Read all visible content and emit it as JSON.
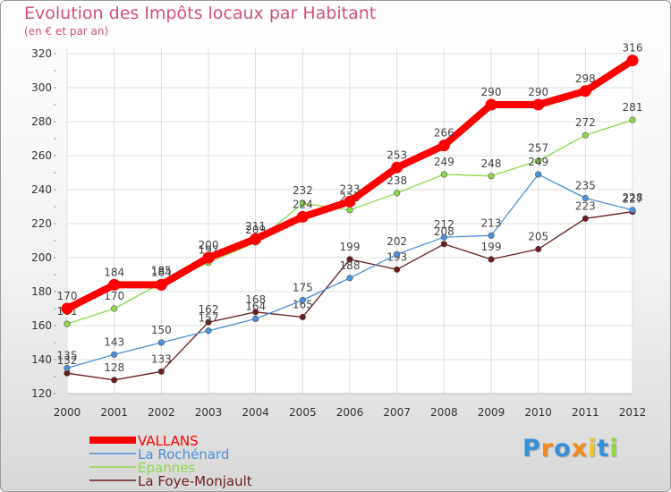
{
  "chart_data": {
    "type": "line",
    "title": "Evolution des Impôts locaux par Habitant",
    "subtitle": "(en € et par an)",
    "xlabel": "",
    "ylabel": "",
    "x": [
      "2000",
      "2001",
      "2002",
      "2003",
      "2004",
      "2005",
      "2006",
      "2007",
      "2008",
      "2009",
      "2010",
      "2011",
      "2012"
    ],
    "ylim": [
      120,
      320
    ],
    "yticks": [
      120,
      140,
      160,
      180,
      200,
      220,
      240,
      260,
      280,
      300,
      320
    ],
    "grid": true,
    "legend_position": "bottom-left",
    "series": [
      {
        "name": "VALLANS",
        "color": "#ff0000",
        "values": [
          170,
          184,
          184,
          200,
          211,
          224,
          233,
          253,
          266,
          290,
          290,
          298,
          316
        ]
      },
      {
        "name": "La Rochénard",
        "color": "#4a90d9",
        "values": [
          135,
          143,
          150,
          157,
          164,
          175,
          188,
          202,
          212,
          213,
          249,
          235,
          228
        ]
      },
      {
        "name": "Epannes",
        "color": "#8ed84a",
        "values": [
          161,
          170,
          185,
          197,
          209,
          232,
          228,
          238,
          249,
          248,
          257,
          272,
          281
        ]
      },
      {
        "name": "La Foye-Monjault",
        "color": "#6b1c1c",
        "values": [
          132,
          128,
          133,
          162,
          168,
          165,
          199,
          193,
          208,
          199,
          205,
          223,
          227
        ]
      }
    ]
  },
  "logo": {
    "letters": [
      "P",
      "r",
      "o",
      "x",
      "i",
      "t",
      "i"
    ],
    "colors": [
      "#3a8fd8",
      "#f08a1c",
      "#3a8fd8",
      "#f08a1c",
      "#f0c81c",
      "#3a8fd8",
      "#8ed84a"
    ]
  }
}
